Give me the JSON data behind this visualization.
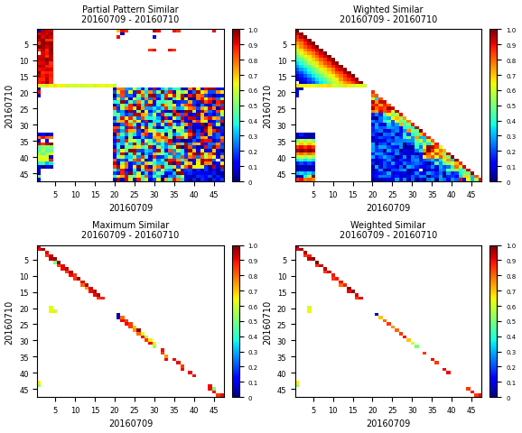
{
  "titles": [
    "Partial Pattern Similar",
    "Wighted Similar",
    "Maximum Similar",
    "Weighted Similar"
  ],
  "subtitle": "20160709 - 20160710",
  "xlabel": "20160709",
  "ylabel": "20160710",
  "xticks": [
    5,
    10,
    15,
    20,
    25,
    30,
    35,
    40,
    45
  ],
  "yticks": [
    5,
    10,
    15,
    20,
    25,
    30,
    35,
    40,
    45
  ],
  "n": 47,
  "background": "#ffffff",
  "colormap": "jet",
  "title_fontsize": 7,
  "label_fontsize": 7,
  "tick_fontsize": 6,
  "cbar_tick_fontsize": 5
}
